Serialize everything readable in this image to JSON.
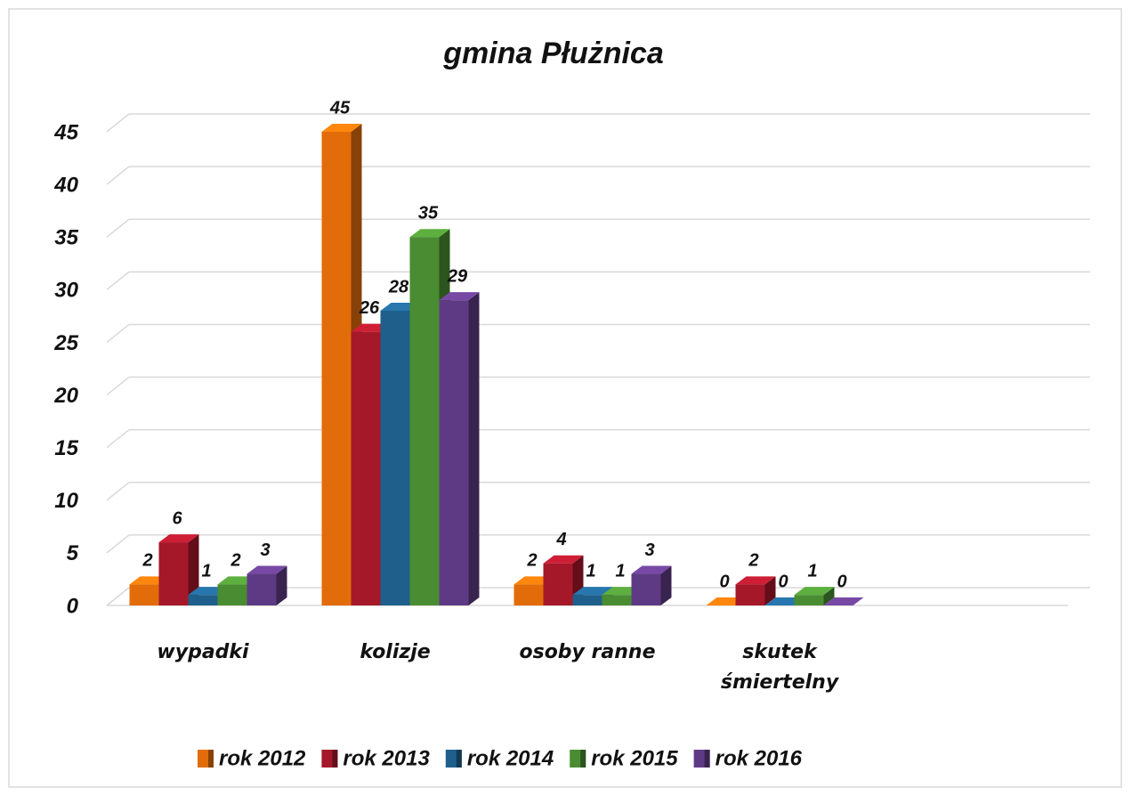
{
  "chart_data": {
    "type": "bar3d",
    "title": "gmina Płużnica",
    "categories": [
      "wypadki",
      "kolizje",
      "osoby ranne",
      "skutek śmiertelny",
      null
    ],
    "series": [
      {
        "name": "rok 2012",
        "color": "#e36c0a",
        "values": [
          2,
          45,
          2,
          0,
          null
        ]
      },
      {
        "name": "rok 2013",
        "color": "#a5182a",
        "values": [
          6,
          26,
          4,
          2,
          null
        ]
      },
      {
        "name": "rok 2014",
        "color": "#1f5f8b",
        "values": [
          1,
          28,
          1,
          0,
          null
        ]
      },
      {
        "name": "rok 2015",
        "color": "#4a8c32",
        "values": [
          2,
          35,
          1,
          1,
          null
        ]
      },
      {
        "name": "rok 2016",
        "color": "#5f3a84",
        "values": [
          3,
          29,
          3,
          0,
          null
        ]
      }
    ],
    "ylim": [
      0,
      45
    ],
    "yticks": [
      0,
      5,
      10,
      15,
      20,
      25,
      30,
      35,
      40,
      45
    ],
    "grid": true,
    "legend": "bottom"
  }
}
